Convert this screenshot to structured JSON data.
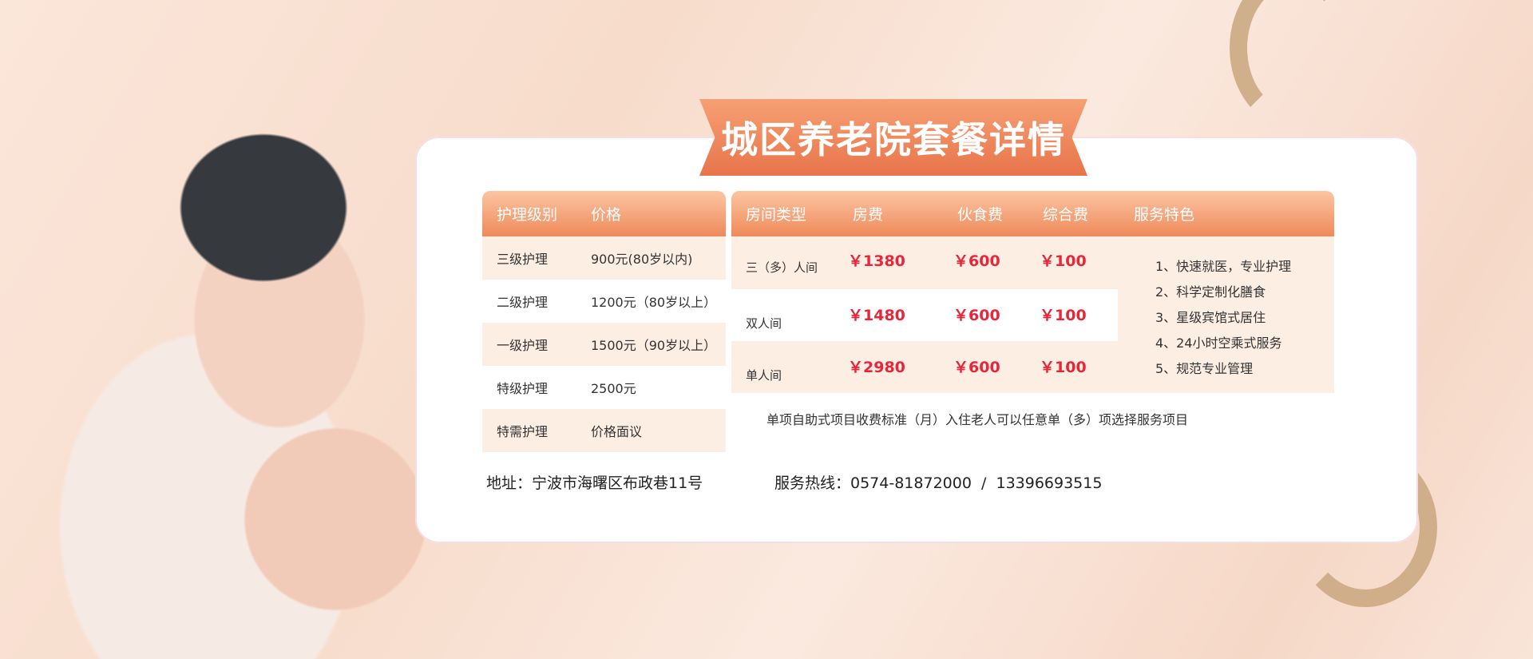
{
  "title": "城区养老院套餐详情",
  "care_table": {
    "headers": [
      "护理级别",
      "价格"
    ],
    "rows": [
      [
        "三级护理",
        "900元(80岁以内)"
      ],
      [
        "二级护理",
        "1200元（80岁以上）"
      ],
      [
        "一级护理",
        "1500元（90岁以上）"
      ],
      [
        "特级护理",
        "2500元"
      ],
      [
        "特需护理",
        "价格面议"
      ]
    ]
  },
  "room_table": {
    "headers": [
      "房间类型",
      "房费",
      "伙食费",
      "综合费",
      "服务特色"
    ],
    "rows": [
      [
        "三（多）人间",
        "￥1380",
        "￥600",
        "￥100"
      ],
      [
        "双人间",
        "￥1480",
        "￥600",
        "￥100"
      ],
      [
        "单人间",
        "￥2980",
        "￥600",
        "￥100"
      ]
    ],
    "features": [
      "1、快速就医，专业护理",
      "2、科学定制化膳食",
      "3、星级宾馆式居住",
      "4、24小时空乘式服务",
      "5、规范专业管理"
    ],
    "note": "单项自助式项目收费标准（月）入住老人可以任意单（多）项选择服务项目"
  },
  "address": "地址：宁波市海曙区布政巷11号",
  "hotline": "服务热线：0574-81872000  /  13396693515",
  "colors": {
    "accent": "#ee8a5a",
    "price": "#e8263a",
    "ribbon": "#c9a77e"
  }
}
